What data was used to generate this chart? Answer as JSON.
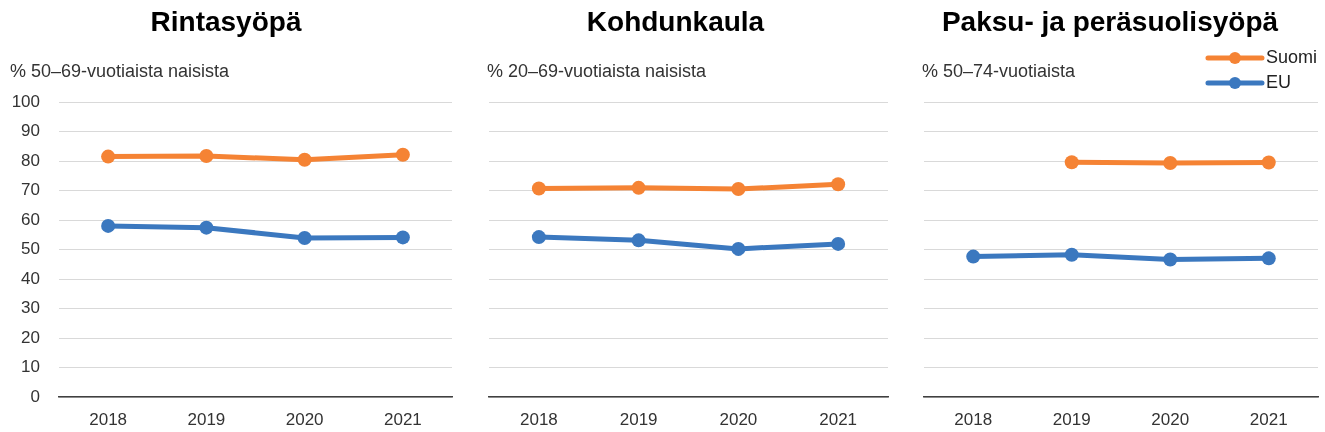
{
  "chart_data": [
    {
      "type": "line",
      "title": "Rintasyöpä",
      "ylabel": "% 50–69-vuotiaista naisista",
      "categories": [
        "2018",
        "2019",
        "2020",
        "2021"
      ],
      "series": [
        {
          "color": "#f58334",
          "values": [
            81.5,
            81.7,
            80.4,
            82.1
          ]
        },
        {
          "color": "#3b78bf",
          "values": [
            58.0,
            57.4,
            53.9,
            54.1
          ]
        }
      ],
      "ylim": [
        0,
        100
      ],
      "yticks": [
        0,
        10,
        20,
        30,
        40,
        50,
        60,
        70,
        80,
        90,
        100
      ],
      "grid": "y",
      "marker": "circle",
      "line_style": "solid"
    },
    {
      "type": "line",
      "title": "Kohdunkaula",
      "ylabel": "% 20–69-vuotiaista naisista",
      "categories": [
        "2018",
        "2019",
        "2020",
        "2021"
      ],
      "series": [
        {
          "color": "#f58334",
          "values": [
            70.7,
            70.9,
            70.5,
            72.1
          ]
        },
        {
          "color": "#3b78bf",
          "values": [
            54.2,
            53.1,
            50.2,
            51.9
          ]
        }
      ],
      "ylim": [
        0,
        100
      ],
      "yticks": [
        0,
        10,
        20,
        30,
        40,
        50,
        60,
        70,
        80,
        90,
        100
      ],
      "grid": "y",
      "marker": "circle",
      "line_style": "solid",
      "tick_labels": "x"
    },
    {
      "type": "line",
      "title": "Paksu- ja peräsuolisyöpä",
      "ylabel": "% 50–74-vuotiaista",
      "categories": [
        "2018",
        "2019",
        "2020",
        "2021"
      ],
      "series": [
        {
          "name": "Suomi",
          "color": "#f58334",
          "values": [
            null,
            79.6,
            79.3,
            79.5
          ]
        },
        {
          "name": "EU",
          "color": "#3b78bf",
          "values": [
            47.6,
            48.2,
            46.6,
            47.0
          ]
        }
      ],
      "ylim": [
        0,
        100
      ],
      "yticks": [
        0,
        10,
        20,
        30,
        40,
        50,
        60,
        70,
        80,
        90,
        100
      ],
      "grid": "y",
      "marker": "circle",
      "line_style": "solid",
      "tick_labels": "x",
      "legend": "top right"
    }
  ]
}
